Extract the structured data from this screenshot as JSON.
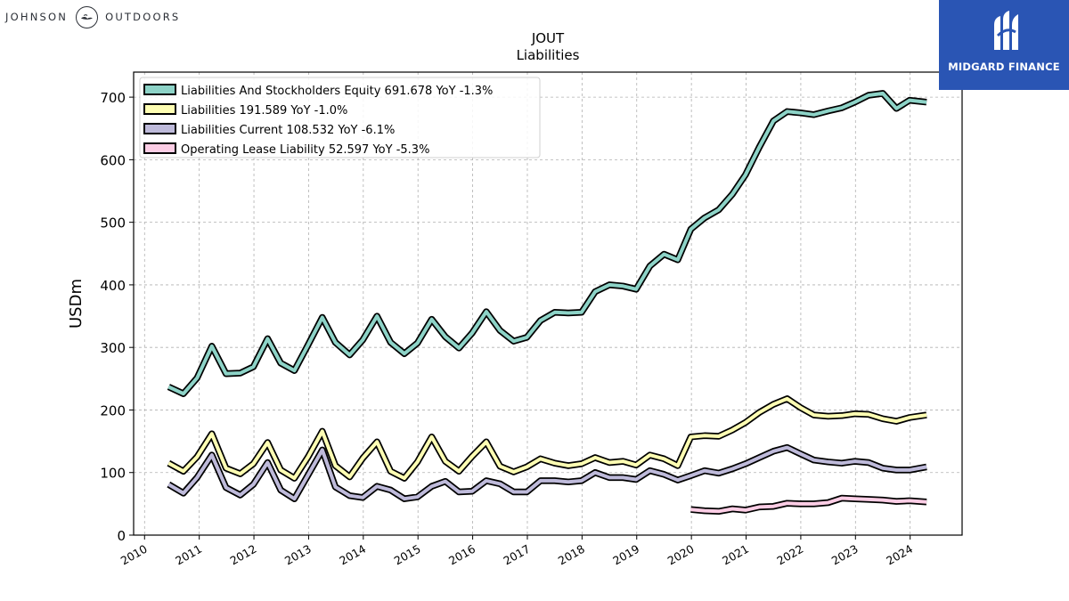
{
  "branding": {
    "left_word_1": "JOHNSON",
    "left_word_2": "OUTDOORS",
    "right_name": "MIDGARD FINANCE",
    "right_bg_color": "#2a55b4"
  },
  "chart_data": {
    "type": "line",
    "title": "JOUT",
    "subtitle": "Liabilities",
    "xlabel": "",
    "ylabel": "USDm",
    "ylim": [
      0,
      740
    ],
    "xlim": [
      2009.8,
      2024.95
    ],
    "grid": true,
    "legend_position": "top-left",
    "yticks": [
      0,
      100,
      200,
      300,
      400,
      500,
      600,
      700
    ],
    "xticks": [
      2010,
      2011,
      2012,
      2013,
      2014,
      2015,
      2016,
      2017,
      2018,
      2019,
      2020,
      2021,
      2022,
      2023,
      2024
    ],
    "series": [
      {
        "name": "Liabilities And Stockholders Equity",
        "legend_label": "Liabilities And Stockholders Equity  691.678 YoY -1.3%",
        "color": "#8dd3c7",
        "points": [
          [
            2010.44,
            237
          ],
          [
            2010.71,
            226
          ],
          [
            2010.96,
            251
          ],
          [
            2011.23,
            302
          ],
          [
            2011.49,
            258
          ],
          [
            2011.75,
            259
          ],
          [
            2011.99,
            269
          ],
          [
            2012.25,
            314
          ],
          [
            2012.49,
            275
          ],
          [
            2012.74,
            263
          ],
          [
            2012.99,
            304
          ],
          [
            2013.25,
            348
          ],
          [
            2013.49,
            308
          ],
          [
            2013.75,
            288
          ],
          [
            2013.99,
            312
          ],
          [
            2014.25,
            350
          ],
          [
            2014.5,
            308
          ],
          [
            2014.75,
            290
          ],
          [
            2014.99,
            307
          ],
          [
            2015.25,
            345
          ],
          [
            2015.5,
            317
          ],
          [
            2015.75,
            299
          ],
          [
            2015.99,
            323
          ],
          [
            2016.25,
            357
          ],
          [
            2016.5,
            327
          ],
          [
            2016.75,
            310
          ],
          [
            2016.99,
            316
          ],
          [
            2017.24,
            343
          ],
          [
            2017.5,
            356
          ],
          [
            2017.75,
            355
          ],
          [
            2017.99,
            356
          ],
          [
            2018.24,
            389
          ],
          [
            2018.5,
            400
          ],
          [
            2018.75,
            398
          ],
          [
            2018.99,
            393
          ],
          [
            2019.24,
            430
          ],
          [
            2019.5,
            449
          ],
          [
            2019.75,
            440
          ],
          [
            2019.99,
            489
          ],
          [
            2020.24,
            507
          ],
          [
            2020.5,
            520
          ],
          [
            2020.75,
            545
          ],
          [
            2020.99,
            576
          ],
          [
            2021.24,
            620
          ],
          [
            2021.5,
            662
          ],
          [
            2021.75,
            677
          ],
          [
            2021.99,
            675
          ],
          [
            2022.24,
            672
          ],
          [
            2022.5,
            678
          ],
          [
            2022.75,
            683
          ],
          [
            2022.99,
            692
          ],
          [
            2023.24,
            703
          ],
          [
            2023.5,
            706
          ],
          [
            2023.75,
            682
          ],
          [
            2023.99,
            695
          ],
          [
            2024.3,
            692
          ]
        ]
      },
      {
        "name": "Liabilities",
        "legend_label": "Liabilities  191.589 YoY -1.0%",
        "color": "#ffffb3",
        "points": [
          [
            2010.44,
            115
          ],
          [
            2010.71,
            102
          ],
          [
            2010.96,
            125
          ],
          [
            2011.23,
            162
          ],
          [
            2011.49,
            107
          ],
          [
            2011.75,
            98
          ],
          [
            2011.99,
            114
          ],
          [
            2012.25,
            148
          ],
          [
            2012.49,
            104
          ],
          [
            2012.74,
            91
          ],
          [
            2012.99,
            125
          ],
          [
            2013.25,
            166
          ],
          [
            2013.49,
            111
          ],
          [
            2013.75,
            93
          ],
          [
            2013.99,
            123
          ],
          [
            2014.25,
            149
          ],
          [
            2014.5,
            102
          ],
          [
            2014.75,
            91
          ],
          [
            2014.99,
            117
          ],
          [
            2015.25,
            157
          ],
          [
            2015.5,
            118
          ],
          [
            2015.75,
            102
          ],
          [
            2015.99,
            126
          ],
          [
            2016.25,
            149
          ],
          [
            2016.5,
            110
          ],
          [
            2016.75,
            101
          ],
          [
            2016.99,
            109
          ],
          [
            2017.24,
            122
          ],
          [
            2017.5,
            115
          ],
          [
            2017.75,
            111
          ],
          [
            2017.99,
            114
          ],
          [
            2018.24,
            124
          ],
          [
            2018.5,
            116
          ],
          [
            2018.75,
            118
          ],
          [
            2018.99,
            112
          ],
          [
            2019.24,
            128
          ],
          [
            2019.5,
            122
          ],
          [
            2019.75,
            111
          ],
          [
            2019.99,
            157
          ],
          [
            2020.24,
            159
          ],
          [
            2020.5,
            158
          ],
          [
            2020.75,
            168
          ],
          [
            2020.99,
            180
          ],
          [
            2021.24,
            196
          ],
          [
            2021.5,
            209
          ],
          [
            2021.75,
            218
          ],
          [
            2021.99,
            204
          ],
          [
            2022.24,
            192
          ],
          [
            2022.5,
            190
          ],
          [
            2022.75,
            191
          ],
          [
            2022.99,
            194
          ],
          [
            2023.24,
            193
          ],
          [
            2023.5,
            186
          ],
          [
            2023.75,
            182
          ],
          [
            2023.99,
            188
          ],
          [
            2024.3,
            192
          ]
        ]
      },
      {
        "name": "Liabilities Current",
        "legend_label": "Liabilities Current  108.532 YoY -6.1%",
        "color": "#bebada",
        "points": [
          [
            2010.44,
            81
          ],
          [
            2010.71,
            67
          ],
          [
            2010.96,
            92
          ],
          [
            2011.23,
            128
          ],
          [
            2011.49,
            76
          ],
          [
            2011.75,
            64
          ],
          [
            2011.99,
            81
          ],
          [
            2012.25,
            116
          ],
          [
            2012.49,
            72
          ],
          [
            2012.74,
            58
          ],
          [
            2012.99,
            96
          ],
          [
            2013.25,
            136
          ],
          [
            2013.49,
            77
          ],
          [
            2013.75,
            63
          ],
          [
            2013.99,
            60
          ],
          [
            2014.25,
            78
          ],
          [
            2014.5,
            72
          ],
          [
            2014.75,
            58
          ],
          [
            2014.99,
            61
          ],
          [
            2015.25,
            78
          ],
          [
            2015.5,
            86
          ],
          [
            2015.75,
            69
          ],
          [
            2015.99,
            70
          ],
          [
            2016.25,
            87
          ],
          [
            2016.5,
            82
          ],
          [
            2016.75,
            69
          ],
          [
            2016.99,
            69
          ],
          [
            2017.24,
            87
          ],
          [
            2017.5,
            87
          ],
          [
            2017.75,
            85
          ],
          [
            2017.99,
            87
          ],
          [
            2018.24,
            100
          ],
          [
            2018.5,
            92
          ],
          [
            2018.75,
            92
          ],
          [
            2018.99,
            89
          ],
          [
            2019.24,
            103
          ],
          [
            2019.5,
            97
          ],
          [
            2019.75,
            88
          ],
          [
            2019.99,
            95
          ],
          [
            2020.24,
            103
          ],
          [
            2020.5,
            99
          ],
          [
            2020.75,
            106
          ],
          [
            2020.99,
            114
          ],
          [
            2021.24,
            124
          ],
          [
            2021.5,
            134
          ],
          [
            2021.75,
            140
          ],
          [
            2021.99,
            130
          ],
          [
            2022.24,
            120
          ],
          [
            2022.5,
            117
          ],
          [
            2022.75,
            115
          ],
          [
            2022.99,
            118
          ],
          [
            2023.24,
            116
          ],
          [
            2023.5,
            107
          ],
          [
            2023.75,
            104
          ],
          [
            2023.99,
            104
          ],
          [
            2024.3,
            109
          ]
        ]
      },
      {
        "name": "Operating Lease Liability",
        "legend_label": "Operating Lease Liability  52.597 YoY -5.3%",
        "color": "#fccde5",
        "points": [
          [
            2019.99,
            41
          ],
          [
            2020.24,
            39
          ],
          [
            2020.5,
            38
          ],
          [
            2020.75,
            42
          ],
          [
            2020.99,
            40
          ],
          [
            2021.24,
            45
          ],
          [
            2021.5,
            46
          ],
          [
            2021.75,
            51
          ],
          [
            2021.99,
            50
          ],
          [
            2022.24,
            50
          ],
          [
            2022.5,
            52
          ],
          [
            2022.75,
            59
          ],
          [
            2022.99,
            58
          ],
          [
            2023.24,
            57
          ],
          [
            2023.5,
            56
          ],
          [
            2023.75,
            54
          ],
          [
            2023.99,
            55
          ],
          [
            2024.3,
            53
          ]
        ]
      }
    ]
  }
}
